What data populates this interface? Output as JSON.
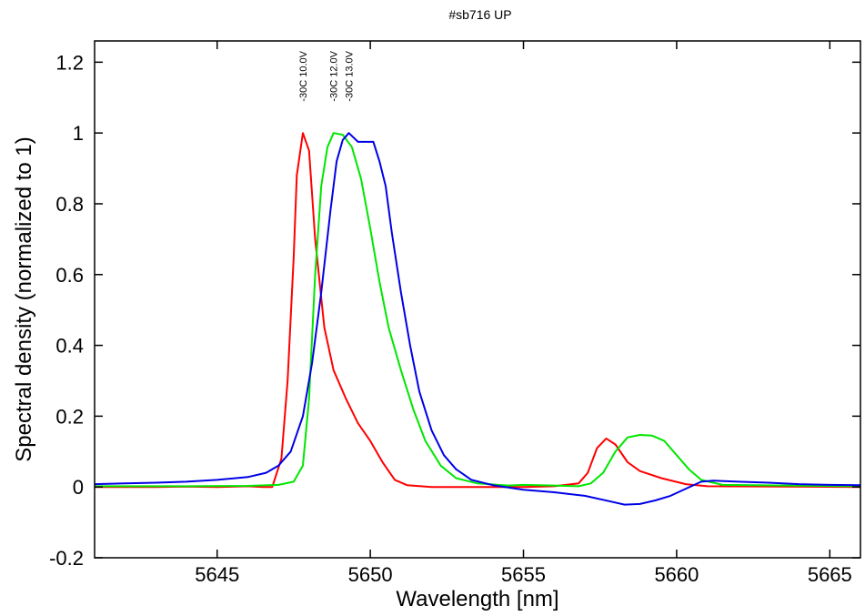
{
  "chart_data": {
    "type": "line",
    "title": "#sb716 UP",
    "xlabel": "Wavelength [nm]",
    "ylabel": "Spectral density (normalized to 1)",
    "xlim": [
      5641,
      5666
    ],
    "ylim": [
      -0.2,
      1.26
    ],
    "xticks": [
      5645,
      5650,
      5655,
      5660,
      5665
    ],
    "yticks": [
      -0.2,
      0,
      0.2,
      0.4,
      0.6,
      0.8,
      1,
      1.2
    ],
    "ytick_labels": [
      "-0.2",
      "0",
      "0.2",
      "0.4",
      "0.6",
      "0.8",
      "1",
      "1.2"
    ],
    "grid": false,
    "legend": "none",
    "series": [
      {
        "name": "-30C 10.0V",
        "color": "#ff0000",
        "annotation_x": 5647.8,
        "points": [
          [
            5641,
            0
          ],
          [
            5643,
            0
          ],
          [
            5644,
            0.001
          ],
          [
            5645,
            0
          ],
          [
            5646,
            0.002
          ],
          [
            5646.5,
            0
          ],
          [
            5646.8,
            0
          ],
          [
            5647.1,
            0.08
          ],
          [
            5647.3,
            0.3
          ],
          [
            5647.5,
            0.65
          ],
          [
            5647.6,
            0.88
          ],
          [
            5647.8,
            1.0
          ],
          [
            5648.0,
            0.95
          ],
          [
            5648.2,
            0.7
          ],
          [
            5648.5,
            0.45
          ],
          [
            5648.8,
            0.33
          ],
          [
            5649.2,
            0.25
          ],
          [
            5649.6,
            0.18
          ],
          [
            5650.0,
            0.13
          ],
          [
            5650.4,
            0.07
          ],
          [
            5650.8,
            0.02
          ],
          [
            5651.2,
            0.005
          ],
          [
            5652,
            0.0
          ],
          [
            5655,
            0
          ],
          [
            5656,
            0.002
          ],
          [
            5656.8,
            0.01
          ],
          [
            5657.1,
            0.04
          ],
          [
            5657.4,
            0.11
          ],
          [
            5657.7,
            0.137
          ],
          [
            5658.0,
            0.12
          ],
          [
            5658.4,
            0.07
          ],
          [
            5658.8,
            0.045
          ],
          [
            5659.5,
            0.025
          ],
          [
            5660.3,
            0.008
          ],
          [
            5661,
            0.002
          ],
          [
            5666,
            0
          ]
        ]
      },
      {
        "name": "-30C 12.0V",
        "color": "#00e600",
        "annotation_x": 5648.8,
        "points": [
          [
            5641,
            0.002
          ],
          [
            5644,
            0.002
          ],
          [
            5646,
            0.003
          ],
          [
            5647,
            0.006
          ],
          [
            5647.5,
            0.015
          ],
          [
            5647.8,
            0.06
          ],
          [
            5648.0,
            0.25
          ],
          [
            5648.2,
            0.6
          ],
          [
            5648.4,
            0.85
          ],
          [
            5648.6,
            0.96
          ],
          [
            5648.8,
            1.0
          ],
          [
            5649.1,
            0.995
          ],
          [
            5649.4,
            0.96
          ],
          [
            5649.7,
            0.87
          ],
          [
            5650.0,
            0.73
          ],
          [
            5650.3,
            0.58
          ],
          [
            5650.6,
            0.45
          ],
          [
            5651.0,
            0.33
          ],
          [
            5651.4,
            0.22
          ],
          [
            5651.8,
            0.13
          ],
          [
            5652.3,
            0.06
          ],
          [
            5652.8,
            0.025
          ],
          [
            5653.5,
            0.01
          ],
          [
            5654.5,
            0.004
          ],
          [
            5655,
            0.006
          ],
          [
            5656,
            0.004
          ],
          [
            5656.8,
            0.002
          ],
          [
            5657.2,
            0.01
          ],
          [
            5657.6,
            0.04
          ],
          [
            5658.0,
            0.1
          ],
          [
            5658.4,
            0.14
          ],
          [
            5658.8,
            0.147
          ],
          [
            5659.2,
            0.145
          ],
          [
            5659.6,
            0.13
          ],
          [
            5660.0,
            0.09
          ],
          [
            5660.4,
            0.05
          ],
          [
            5660.8,
            0.02
          ],
          [
            5661.5,
            0.006
          ],
          [
            5666,
            0.002
          ]
        ]
      },
      {
        "name": "-30C 13.0V",
        "color": "#0000e6",
        "annotation_x": 5649.3,
        "points": [
          [
            5641,
            0.008
          ],
          [
            5642,
            0.01
          ],
          [
            5643,
            0.012
          ],
          [
            5644,
            0.015
          ],
          [
            5645,
            0.02
          ],
          [
            5646,
            0.028
          ],
          [
            5646.6,
            0.04
          ],
          [
            5647.0,
            0.06
          ],
          [
            5647.4,
            0.1
          ],
          [
            5647.8,
            0.2
          ],
          [
            5648.1,
            0.35
          ],
          [
            5648.4,
            0.55
          ],
          [
            5648.7,
            0.78
          ],
          [
            5648.9,
            0.92
          ],
          [
            5649.1,
            0.98
          ],
          [
            5649.3,
            1.0
          ],
          [
            5649.6,
            0.975
          ],
          [
            5649.9,
            0.975
          ],
          [
            5650.1,
            0.975
          ],
          [
            5650.3,
            0.92
          ],
          [
            5650.5,
            0.85
          ],
          [
            5650.7,
            0.72
          ],
          [
            5651.0,
            0.55
          ],
          [
            5651.3,
            0.4
          ],
          [
            5651.6,
            0.27
          ],
          [
            5652.0,
            0.16
          ],
          [
            5652.4,
            0.09
          ],
          [
            5652.8,
            0.05
          ],
          [
            5653.3,
            0.02
          ],
          [
            5654.0,
            0.005
          ],
          [
            5655,
            -0.008
          ],
          [
            5656,
            -0.015
          ],
          [
            5657,
            -0.025
          ],
          [
            5657.8,
            -0.04
          ],
          [
            5658.3,
            -0.05
          ],
          [
            5658.8,
            -0.048
          ],
          [
            5659.3,
            -0.038
          ],
          [
            5659.8,
            -0.025
          ],
          [
            5660.3,
            -0.005
          ],
          [
            5660.8,
            0.015
          ],
          [
            5661.2,
            0.018
          ],
          [
            5662,
            0.015
          ],
          [
            5663,
            0.012
          ],
          [
            5664,
            0.008
          ],
          [
            5665,
            0.006
          ],
          [
            5666,
            0.005
          ]
        ]
      }
    ]
  }
}
